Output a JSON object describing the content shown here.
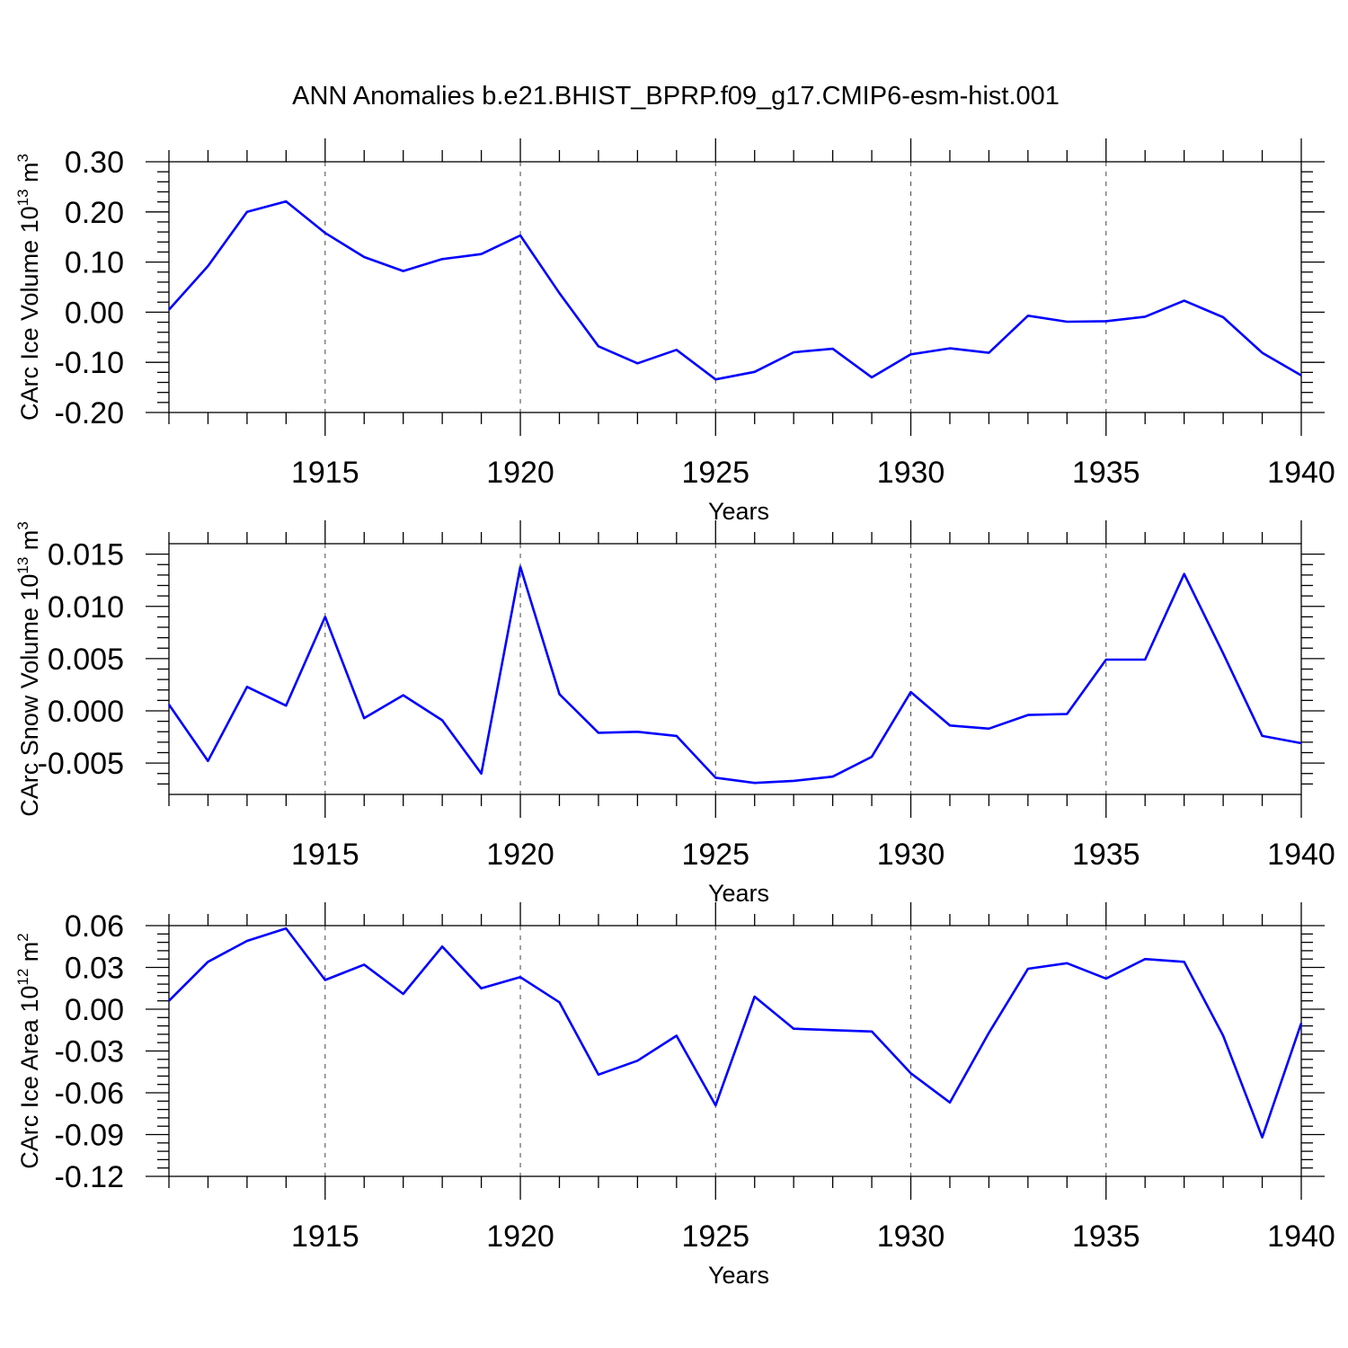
{
  "figure_title": "ANN Anomalies b.e21.BHIST_BPRP.f09_g17.CMIP6-esm-hist.001",
  "line_color": "#0000ff",
  "chart_data": [
    {
      "type": "line",
      "ylabel_main": "CArc Ice Volume 10",
      "ylabel_exp": "13",
      "ylabel_unit": " m",
      "ylabel_unit_exp": "3",
      "xlabel": "Years",
      "xlim": [
        1911,
        1940
      ],
      "ylim": [
        -0.2,
        0.3
      ],
      "yticks": [
        0.3,
        0.2,
        0.1,
        0.0,
        -0.1,
        -0.2
      ],
      "yticklabels": [
        "0.30",
        "0.20",
        "0.10",
        "0.00",
        "-0.10",
        "-0.20"
      ],
      "xticks": [
        1915,
        1920,
        1925,
        1930,
        1935,
        1940
      ],
      "xticklabels": [
        "1915",
        "1920",
        "1925",
        "1930",
        "1935",
        "1940"
      ],
      "grid": "vertical dashed at labeled years",
      "x": [
        1911,
        1912,
        1913,
        1914,
        1915,
        1916,
        1917,
        1918,
        1919,
        1920,
        1921,
        1922,
        1923,
        1924,
        1925,
        1926,
        1927,
        1928,
        1929,
        1930,
        1931,
        1932,
        1933,
        1934,
        1935,
        1936,
        1937,
        1938,
        1939,
        1940
      ],
      "y": [
        0.005,
        0.092,
        0.2,
        0.221,
        0.158,
        0.11,
        0.082,
        0.106,
        0.116,
        0.153,
        0.038,
        -0.068,
        -0.102,
        -0.075,
        -0.134,
        -0.119,
        -0.08,
        -0.073,
        -0.13,
        -0.084,
        -0.072,
        -0.081,
        -0.007,
        -0.019,
        -0.018,
        -0.009,
        0.023,
        -0.01,
        -0.081,
        -0.126
      ]
    },
    {
      "type": "line",
      "ylabel_main": "CArc Snow Volume 10",
      "ylabel_exp": "13",
      "ylabel_unit": " m",
      "ylabel_unit_exp": "3",
      "xlabel": "Years",
      "xlim": [
        1911,
        1940
      ],
      "ylim": [
        -0.008,
        0.016
      ],
      "yticks": [
        0.015,
        0.01,
        0.005,
        0.0,
        -0.005
      ],
      "yticklabels": [
        "0.015",
        "0.010",
        "0.005",
        "0.000",
        "-0.005"
      ],
      "xticks": [
        1915,
        1920,
        1925,
        1930,
        1935,
        1940
      ],
      "xticklabels": [
        "1915",
        "1920",
        "1925",
        "1930",
        "1935",
        "1940"
      ],
      "grid": "vertical dashed at labeled years",
      "x": [
        1911,
        1912,
        1913,
        1914,
        1915,
        1916,
        1917,
        1918,
        1919,
        1920,
        1921,
        1922,
        1923,
        1924,
        1925,
        1926,
        1927,
        1928,
        1929,
        1930,
        1931,
        1932,
        1933,
        1934,
        1935,
        1936,
        1937,
        1938,
        1939,
        1940
      ],
      "y": [
        0.0006,
        -0.0048,
        0.0023,
        0.0005,
        0.009,
        -0.0007,
        0.0015,
        -0.0009,
        -0.006,
        0.0138,
        0.0016,
        -0.0021,
        -0.002,
        -0.0024,
        -0.0064,
        -0.0069,
        -0.0067,
        -0.0063,
        -0.0044,
        0.0018,
        -0.0014,
        -0.0017,
        -0.0004,
        -0.0003,
        0.0049,
        0.0049,
        0.0131,
        0.0055,
        -0.0024,
        -0.0031
      ]
    },
    {
      "type": "line",
      "ylabel_main": "CArc Ice Area 10",
      "ylabel_exp": "12",
      "ylabel_unit": " m",
      "ylabel_unit_exp": "2",
      "xlabel": "Years",
      "xlim": [
        1911,
        1940
      ],
      "ylim": [
        -0.12,
        0.06
      ],
      "yticks": [
        0.06,
        0.03,
        0.0,
        -0.03,
        -0.06,
        -0.09,
        -0.12
      ],
      "yticklabels": [
        "0.06",
        "0.03",
        "0.00",
        "-0.03",
        "-0.06",
        "-0.09",
        "-0.12"
      ],
      "xticks": [
        1915,
        1920,
        1925,
        1930,
        1935,
        1940
      ],
      "xticklabels": [
        "1915",
        "1920",
        "1925",
        "1930",
        "1935",
        "1940"
      ],
      "grid": "vertical dashed at labeled years",
      "x": [
        1911,
        1912,
        1913,
        1914,
        1915,
        1916,
        1917,
        1918,
        1919,
        1920,
        1921,
        1922,
        1923,
        1924,
        1925,
        1926,
        1927,
        1928,
        1929,
        1930,
        1931,
        1932,
        1933,
        1934,
        1935,
        1936,
        1937,
        1938,
        1939,
        1940
      ],
      "y": [
        0.006,
        0.034,
        0.049,
        0.058,
        0.021,
        0.032,
        0.011,
        0.045,
        0.015,
        0.023,
        0.005,
        -0.047,
        -0.037,
        -0.019,
        -0.069,
        0.009,
        -0.014,
        -0.015,
        -0.016,
        -0.046,
        -0.067,
        -0.017,
        0.029,
        0.033,
        0.022,
        0.036,
        0.034,
        -0.019,
        -0.092,
        -0.01
      ]
    }
  ]
}
